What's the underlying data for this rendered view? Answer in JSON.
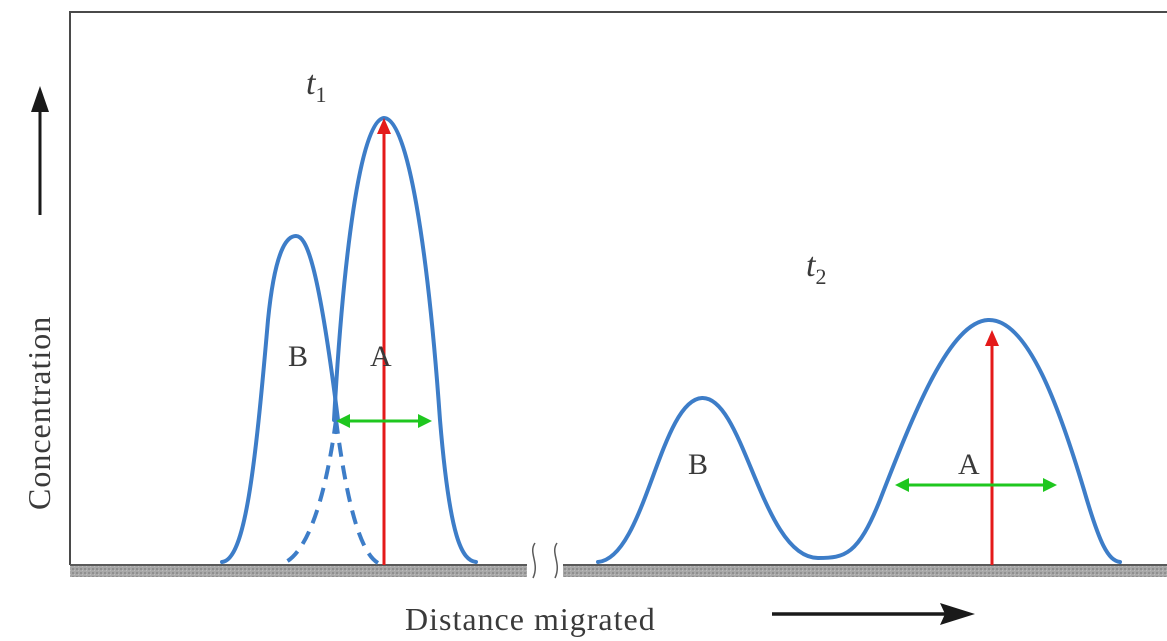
{
  "labels": {
    "time1": "t",
    "time1_sub": "1",
    "time2": "t",
    "time2_sub": "2",
    "peak_b_t1": "B",
    "peak_a_t1": "A",
    "peak_b_t2": "B",
    "peak_a_t2": "A"
  },
  "axes": {
    "y_label": "Concentration",
    "x_label": "Distance migrated"
  },
  "colors": {
    "curve": "#3d7dc8",
    "height_marker": "#e41a1a",
    "width_marker": "#1fc71f",
    "frame": "#4a4a4a",
    "baseline_shadow": "#9c9c9c"
  }
}
